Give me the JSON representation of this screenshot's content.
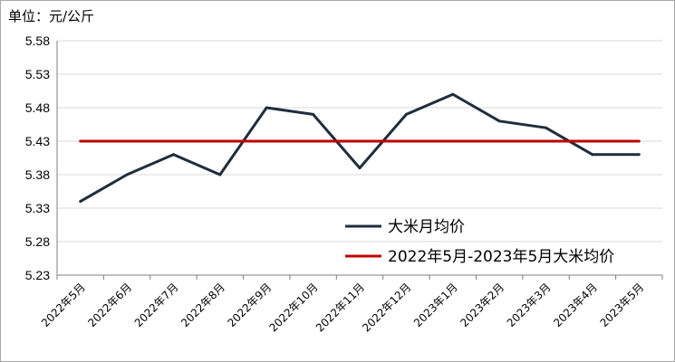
{
  "unit_label": "单位：元/公斤",
  "colors": {
    "monthly": "#1f2d3d",
    "average": "#c00000",
    "grid": "#d9d9d9",
    "axis": "#7f7f7f"
  },
  "chart_data": {
    "type": "line",
    "categories": [
      "2022年5月",
      "2022年6月",
      "2022年7月",
      "2022年8月",
      "2022年9月",
      "2022年10月",
      "2022年11月",
      "2022年12月",
      "2023年1月",
      "2023年2月",
      "2023年3月",
      "2023年4月",
      "2023年5月"
    ],
    "ylim": [
      5.23,
      5.58
    ],
    "yticks": [
      "5.58",
      "5.53",
      "5.48",
      "5.43",
      "5.38",
      "5.33",
      "5.28",
      "5.23"
    ],
    "grid": true,
    "legend_position": "bottom-right",
    "series": [
      {
        "name": "大米月均价",
        "values": [
          5.34,
          5.38,
          5.41,
          5.38,
          5.48,
          5.47,
          5.39,
          5.47,
          5.5,
          5.46,
          5.45,
          5.41,
          5.41
        ]
      },
      {
        "name": "2022年5月-2023年5月大米均价",
        "values": [
          5.43,
          5.43,
          5.43,
          5.43,
          5.43,
          5.43,
          5.43,
          5.43,
          5.43,
          5.43,
          5.43,
          5.43,
          5.43
        ]
      }
    ]
  }
}
